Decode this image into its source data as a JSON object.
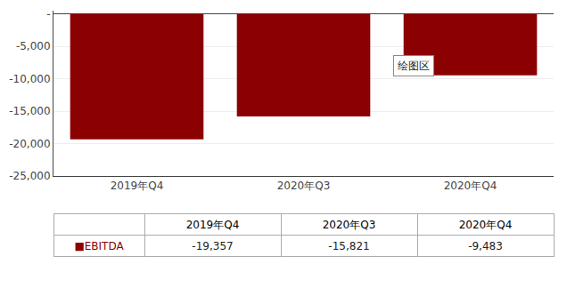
{
  "chart_data": {
    "type": "bar",
    "categories": [
      "2019年Q4",
      "2020年Q3",
      "2020年Q4"
    ],
    "values": [
      -19357,
      -15821,
      -9483
    ],
    "color": "#8B0000",
    "ylim": [
      -25000,
      500
    ],
    "yticks": [
      {
        "value": 0,
        "label": "-"
      },
      {
        "value": -5000,
        "label": "-5,000"
      },
      {
        "value": -10000,
        "label": "-10,000"
      },
      {
        "value": -15000,
        "label": "-15,000"
      },
      {
        "value": -20000,
        "label": "-20,000"
      },
      {
        "value": -25000,
        "label": "-25,000"
      }
    ],
    "grid": true,
    "annotations": [
      "绘图区"
    ],
    "table": {
      "header": [
        null,
        "2019年Q4",
        "2020年Q3",
        "2020年Q4"
      ],
      "rows": [
        [
          "■EBITDA",
          "-19,357",
          "-15,821",
          "-9,483"
        ]
      ]
    }
  }
}
